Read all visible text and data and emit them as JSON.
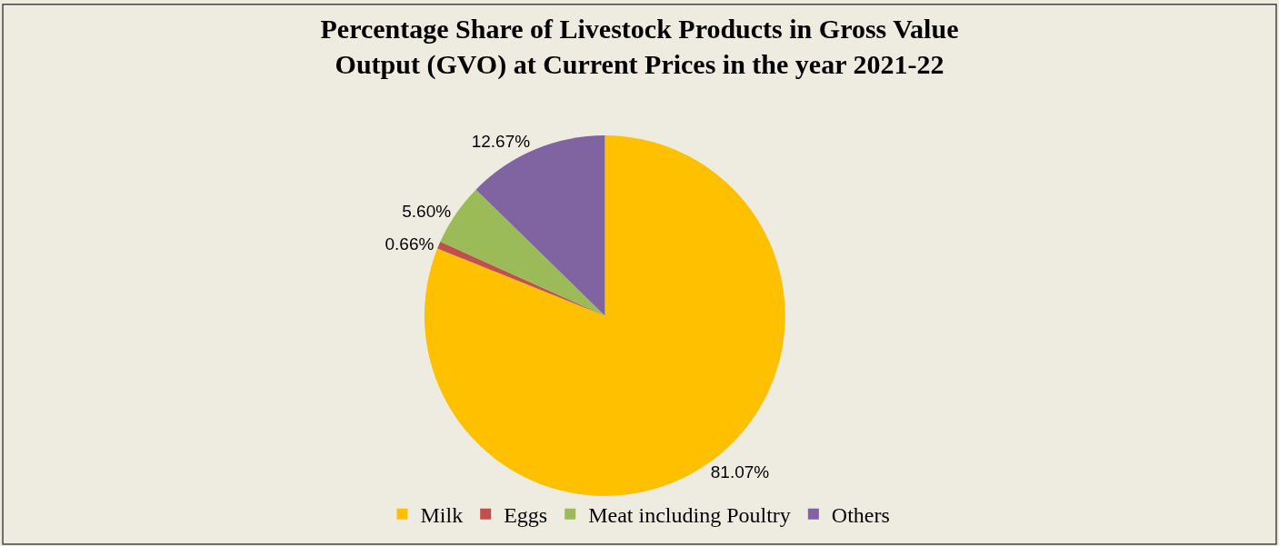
{
  "chart_data": {
    "type": "pie",
    "title": "Percentage Share of Livestock Products in Gross Value Output (GVO) at Current Prices in the year 2021-22",
    "categories": [
      "Milk",
      "Eggs",
      "Meat including Poultry",
      "Others"
    ],
    "values": [
      81.07,
      0.66,
      5.6,
      12.67
    ],
    "value_labels": [
      "81.07%",
      "0.66%",
      "5.60%",
      "12.67%"
    ],
    "colors": [
      "#ffc000",
      "#c0504d",
      "#9bbb59",
      "#8064a2"
    ],
    "legend": "bottom"
  }
}
